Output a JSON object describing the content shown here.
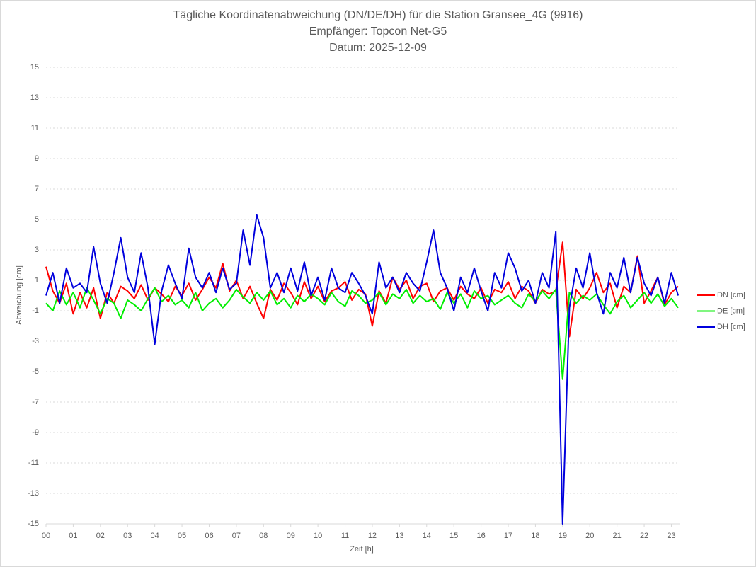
{
  "chart_data": {
    "type": "line",
    "title": [
      "Tägliche Koordinatenabweichung (DN/DE/DH) für die Station Gransee_4G (9916)",
      "Empfänger: Topcon Net-G5",
      "Datum: 2025-12-09"
    ],
    "x_label": "Zeit [h]",
    "y_label": "Abweichung [cm]",
    "x": [
      0,
      0.25,
      0.5,
      0.75,
      1,
      1.25,
      1.5,
      1.75,
      2,
      2.25,
      2.5,
      2.75,
      3,
      3.25,
      3.5,
      3.75,
      4,
      4.25,
      4.5,
      4.75,
      5,
      5.25,
      5.5,
      5.75,
      6,
      6.25,
      6.5,
      6.75,
      7,
      7.25,
      7.5,
      7.75,
      8,
      8.25,
      8.5,
      8.75,
      9,
      9.25,
      9.5,
      9.75,
      10,
      10.25,
      10.5,
      10.75,
      11,
      11.25,
      11.5,
      11.75,
      12,
      12.25,
      12.5,
      12.75,
      13,
      13.25,
      13.5,
      13.75,
      14,
      14.25,
      14.5,
      14.75,
      15,
      15.25,
      15.5,
      15.75,
      16,
      16.25,
      16.5,
      16.75,
      17,
      17.25,
      17.5,
      17.75,
      18,
      18.25,
      18.5,
      18.75,
      19,
      19.25,
      19.5,
      19.75,
      20,
      20.25,
      20.5,
      20.75,
      21,
      21.25,
      21.5,
      21.75,
      22,
      22.25,
      22.5,
      22.75,
      23,
      23.25
    ],
    "series": [
      {
        "name": "DN [cm]",
        "color": "#ff0000",
        "values": [
          1.9,
          0.3,
          -0.5,
          0.8,
          -1.2,
          0.2,
          -0.8,
          0.5,
          -1.5,
          0.2,
          -0.5,
          0.6,
          0.3,
          -0.2,
          0.7,
          -0.3,
          0.5,
          0.1,
          -0.4,
          0.6,
          0.0,
          0.8,
          -0.3,
          0.4,
          1.2,
          0.5,
          2.1,
          0.3,
          1.0,
          -0.2,
          0.6,
          -0.5,
          -1.5,
          0.4,
          -0.3,
          0.8,
          0.2,
          -0.6,
          0.9,
          -0.2,
          0.6,
          -0.4,
          0.3,
          0.5,
          0.9,
          -0.3,
          0.4,
          0.1,
          -2.0,
          0.3,
          -0.5,
          1.2,
          0.4,
          1.0,
          -0.2,
          0.6,
          0.8,
          -0.4,
          0.3,
          0.5,
          -0.3,
          0.6,
          0.1,
          -0.2,
          0.5,
          -0.5,
          0.4,
          0.2,
          0.9,
          -0.2,
          0.6,
          0.3,
          -0.5,
          0.4,
          0.1,
          0.3,
          3.5,
          -2.7,
          0.4,
          -0.2,
          0.5,
          1.5,
          0.2,
          0.8,
          -0.8,
          0.6,
          0.2,
          2.6,
          -0.5,
          0.3,
          1.2,
          -0.6,
          0.2,
          0.6
        ]
      },
      {
        "name": "DE [cm]",
        "color": "#00ee00",
        "values": [
          -0.5,
          -1.0,
          0.3,
          -0.6,
          0.2,
          -0.8,
          0.5,
          -0.3,
          -1.2,
          -0.2,
          -0.5,
          -1.5,
          -0.3,
          -0.6,
          -1.0,
          -0.2,
          0.5,
          -0.4,
          0.0,
          -0.6,
          -0.3,
          -0.8,
          0.2,
          -1.0,
          -0.5,
          -0.2,
          -0.8,
          -0.3,
          0.4,
          -0.1,
          -0.5,
          0.2,
          -0.3,
          0.3,
          -0.6,
          -0.2,
          -0.8,
          0.0,
          -0.4,
          0.1,
          -0.2,
          -0.6,
          0.2,
          -0.4,
          -0.7,
          0.3,
          0.0,
          -0.5,
          -0.3,
          0.2,
          -0.6,
          0.1,
          -0.2,
          0.4,
          -0.5,
          0.0,
          -0.4,
          -0.2,
          -0.9,
          0.2,
          -0.5,
          0.1,
          -0.8,
          0.3,
          -0.2,
          0.0,
          -0.6,
          -0.3,
          0.0,
          -0.5,
          -0.8,
          0.1,
          -0.4,
          0.3,
          -0.2,
          0.4,
          -5.5,
          0.2,
          -0.5,
          0.0,
          -0.3,
          0.1,
          -0.6,
          -1.2,
          -0.4,
          0.0,
          -0.8,
          -0.3,
          0.2,
          -0.5,
          0.1,
          -0.7,
          -0.2,
          -0.8
        ]
      },
      {
        "name": "DH [cm]",
        "color": "#0000dd",
        "values": [
          0.0,
          1.5,
          -0.5,
          1.8,
          0.5,
          0.8,
          0.2,
          3.2,
          0.8,
          -0.5,
          1.5,
          3.8,
          1.2,
          0.2,
          2.8,
          0.5,
          -3.2,
          0.3,
          2.0,
          0.8,
          -0.2,
          3.1,
          1.2,
          0.5,
          1.5,
          0.2,
          1.8,
          0.4,
          0.8,
          4.3,
          2.0,
          5.3,
          3.8,
          0.5,
          1.5,
          0.2,
          1.8,
          0.3,
          2.2,
          0.0,
          1.2,
          -0.3,
          1.8,
          0.5,
          0.2,
          1.5,
          0.8,
          0.0,
          -1.2,
          2.2,
          0.5,
          1.2,
          0.2,
          1.5,
          0.8,
          0.3,
          2.2,
          4.3,
          1.5,
          0.5,
          -1.0,
          1.2,
          0.2,
          1.8,
          0.3,
          -1.0,
          1.5,
          0.5,
          2.8,
          1.8,
          0.3,
          1.0,
          -0.5,
          1.5,
          0.5,
          4.2,
          -15,
          -0.8,
          1.8,
          0.5,
          2.8,
          0.2,
          -1.2,
          1.5,
          0.5,
          2.5,
          0.2,
          2.5,
          0.8,
          0.0,
          1.2,
          -0.5,
          1.5,
          0.0
        ]
      }
    ],
    "xlim": [
      0,
      23.3
    ],
    "xticks": [
      {
        "value": 0,
        "label": "00"
      },
      {
        "value": 1,
        "label": "01"
      },
      {
        "value": 2,
        "label": "02"
      },
      {
        "value": 3,
        "label": "03"
      },
      {
        "value": 4,
        "label": "04"
      },
      {
        "value": 5,
        "label": "05"
      },
      {
        "value": 6,
        "label": "06"
      },
      {
        "value": 7,
        "label": "07"
      },
      {
        "value": 8,
        "label": "08"
      },
      {
        "value": 9,
        "label": "09"
      },
      {
        "value": 10,
        "label": "10"
      },
      {
        "value": 11,
        "label": "11"
      },
      {
        "value": 12,
        "label": "12"
      },
      {
        "value": 13,
        "label": "13"
      },
      {
        "value": 14,
        "label": "14"
      },
      {
        "value": 15,
        "label": "15"
      },
      {
        "value": 16,
        "label": "16"
      },
      {
        "value": 17,
        "label": "17"
      },
      {
        "value": 18,
        "label": "18"
      },
      {
        "value": 19,
        "label": "19"
      },
      {
        "value": 20,
        "label": "20"
      },
      {
        "value": 21,
        "label": "21"
      },
      {
        "value": 22,
        "label": "22"
      },
      {
        "value": 23,
        "label": "23"
      }
    ],
    "ylim": [
      -15,
      15
    ],
    "yticks": [
      -15,
      -13,
      -11,
      -9,
      -7,
      -5,
      -3,
      -1,
      1,
      3,
      5,
      7,
      9,
      11,
      13,
      15
    ],
    "grid": true,
    "legend": "right"
  }
}
